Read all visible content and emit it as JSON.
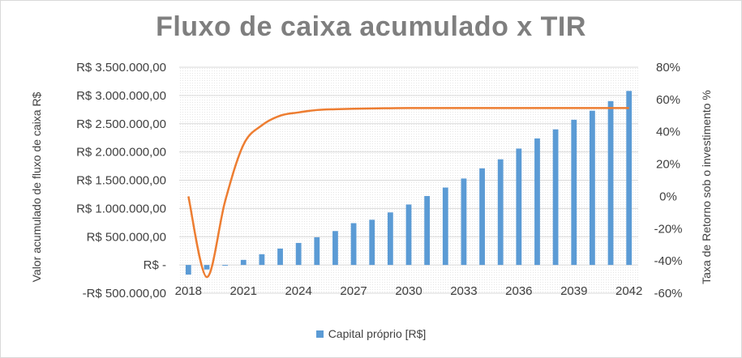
{
  "chart_data": {
    "type": "bar+line",
    "title": "Fluxo de caixa acumulado x TIR",
    "ylabel": "Valor acumulado de fluxo de caixa R$",
    "y2label": "Taxa de Retorno sob o investimento %",
    "ylim": [
      -500000,
      3500000
    ],
    "y2lim": [
      -0.6,
      0.8
    ],
    "y_ticks": [
      {
        "value": 3500000,
        "label": "R$ 3.500.000,00"
      },
      {
        "value": 3000000,
        "label": "R$ 3.000.000,00"
      },
      {
        "value": 2500000,
        "label": "R$ 2.500.000,00"
      },
      {
        "value": 2000000,
        "label": "R$ 2.000.000,00"
      },
      {
        "value": 1500000,
        "label": "R$ 1.500.000,00"
      },
      {
        "value": 1000000,
        "label": "R$ 1.000.000,00"
      },
      {
        "value": 500000,
        "label": "R$ 500.000,00"
      },
      {
        "value": 0,
        "label": "R$ -"
      },
      {
        "value": -500000,
        "label": "-R$ 500.000,00"
      }
    ],
    "y2_ticks": [
      {
        "value": 0.8,
        "label": "80%"
      },
      {
        "value": 0.6,
        "label": "60%"
      },
      {
        "value": 0.4,
        "label": "40%"
      },
      {
        "value": 0.2,
        "label": "20%"
      },
      {
        "value": 0.0,
        "label": "0%"
      },
      {
        "value": -0.2,
        "label": "-20%"
      },
      {
        "value": -0.4,
        "label": "-40%"
      },
      {
        "value": -0.6,
        "label": "-60%"
      }
    ],
    "x_tick_labels": [
      "2018",
      "2021",
      "2024",
      "2027",
      "2030",
      "2033",
      "2036",
      "2039",
      "2042"
    ],
    "x": [
      2018,
      2019,
      2020,
      2021,
      2022,
      2023,
      2024,
      2025,
      2026,
      2027,
      2028,
      2029,
      2030,
      2031,
      2032,
      2033,
      2034,
      2035,
      2036,
      2037,
      2038,
      2039,
      2040,
      2041,
      2042
    ],
    "series": [
      {
        "name": "Capital próprio [R$]",
        "type": "bar",
        "axis": "left",
        "color": "#5b9bd5",
        "values": [
          -170000,
          -80000,
          -10000,
          90000,
          190000,
          290000,
          390000,
          490000,
          600000,
          740000,
          800000,
          930000,
          1070000,
          1220000,
          1370000,
          1530000,
          1710000,
          1870000,
          2060000,
          2240000,
          2400000,
          2570000,
          2730000,
          2900000,
          3080000
        ]
      },
      {
        "type": "line",
        "axis": "right",
        "color": "#ed7d31",
        "values": [
          0.0,
          -0.5,
          -0.03,
          0.32,
          0.44,
          0.5,
          0.52,
          0.535,
          0.54,
          0.543,
          0.545,
          0.546,
          0.547,
          0.547,
          0.547,
          0.547,
          0.547,
          0.547,
          0.547,
          0.547,
          0.547,
          0.547,
          0.547,
          0.547,
          0.547
        ]
      }
    ],
    "legend": "bottom",
    "grid": true
  }
}
